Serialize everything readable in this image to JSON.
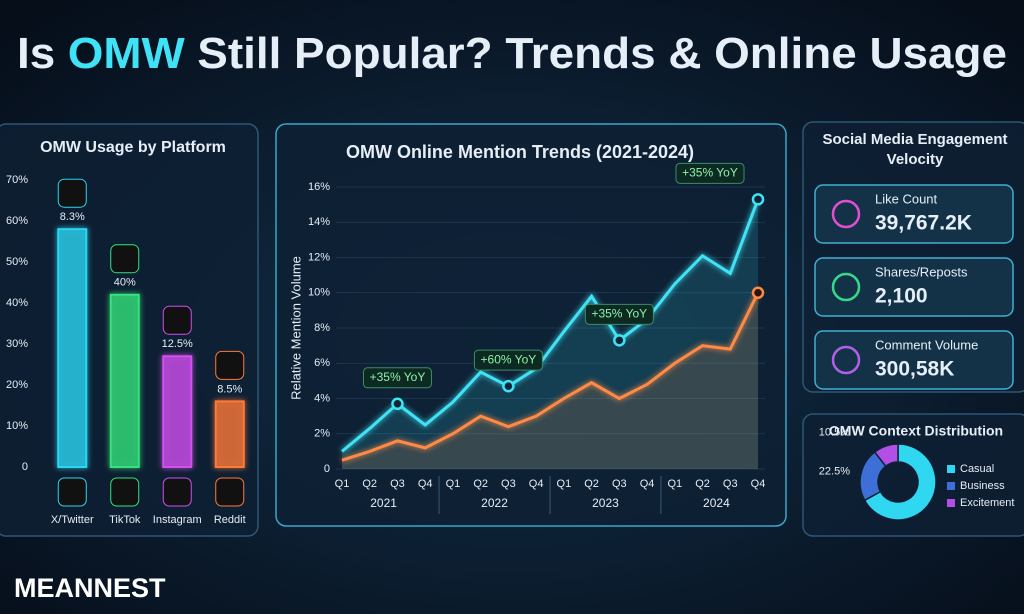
{
  "title": {
    "pre": "Is",
    "highlight": "OMW",
    "post": "Still Popular? Trends & Online Usage"
  },
  "brand": "MEANNEST",
  "engagement": {
    "title": "Social Media Engagement Velocity",
    "cards": [
      {
        "label": "Like Count",
        "value": "39,767.2K"
      },
      {
        "label": "Shares/Reposts",
        "value": "2,100"
      },
      {
        "label": "Comment Volume",
        "value": "300,58K"
      }
    ]
  },
  "chart_data": [
    {
      "type": "bar",
      "title": "OMW Usage by Platform",
      "categories": [
        "X/Twitter",
        "TikTok",
        "Instagram",
        "Reddit"
      ],
      "values": [
        58,
        42,
        27,
        16
      ],
      "annotations": [
        "8.3%",
        "40%",
        "12.5%",
        "8.5%"
      ],
      "colors": [
        "#2bd6f2",
        "#34e27c",
        "#d24ff0",
        "#ff7a38"
      ],
      "ylim": [
        0,
        70
      ],
      "yticks": [
        0,
        {
          "value": 10,
          "label": "10%"
        },
        {
          "value": 20,
          "label": "20%"
        },
        {
          "value": 30,
          "label": "30%"
        },
        {
          "value": 40,
          "label": "40%"
        },
        {
          "value": 50,
          "label": "50%"
        },
        {
          "value": 60,
          "label": "60%"
        },
        {
          "value": 70,
          "label": "70%"
        }
      ],
      "grid": false
    },
    {
      "type": "line",
      "title": "OMW Online Mention Trends (2021-2024)",
      "y_label": "Relative Mention Volume",
      "categories": [
        "Q1",
        "Q2",
        "Q3",
        "Q4",
        "Q1",
        "Q2",
        "Q3",
        "Q4",
        "Q1",
        "Q2",
        "Q3",
        "Q4",
        "Q1",
        "Q2",
        "Q3",
        "Q4"
      ],
      "groups": [
        "2021",
        "2022",
        "2023",
        "2024"
      ],
      "series": [
        {
          "color": "#3fe3f5",
          "values": [
            1.0,
            2.3,
            3.7,
            2.5,
            3.8,
            5.5,
            4.7,
            5.7,
            7.8,
            9.8,
            7.3,
            8.5,
            10.5,
            12.1,
            11.1,
            15.3
          ]
        },
        {
          "color": "#ff8a45",
          "values": [
            0.5,
            1.0,
            1.6,
            1.2,
            2.0,
            3.0,
            2.4,
            3.0,
            4.0,
            4.9,
            4.0,
            4.8,
            6.0,
            7.0,
            6.8,
            10.0
          ]
        }
      ],
      "annotations": [
        "+35% YoY",
        "+60% YoY",
        "+35% YoY",
        "+35% YoY"
      ],
      "ylim": [
        0,
        16
      ],
      "yticks": [
        0,
        {
          "value": 2,
          "label": "2%"
        },
        {
          "value": 4,
          "label": "4%"
        },
        {
          "value": 6,
          "label": "6%"
        },
        {
          "value": 8,
          "label": "8%"
        },
        {
          "value": 10,
          "label": "10%"
        },
        {
          "value": 12,
          "label": "12%"
        },
        {
          "value": 14,
          "label": "14%"
        },
        {
          "value": 16,
          "label": "16%"
        }
      ],
      "grid": true
    },
    {
      "type": "donut",
      "title": "OMW Context Distribution",
      "categories": [
        "Casual",
        "Business",
        "Excitement"
      ],
      "values": [
        67,
        22.5,
        10.5
      ],
      "value_labels": [
        null,
        "22.5%",
        "10.5%"
      ],
      "colors": [
        "#2fd8f0",
        "#3d6fd6",
        "#b44fe6"
      ]
    }
  ]
}
